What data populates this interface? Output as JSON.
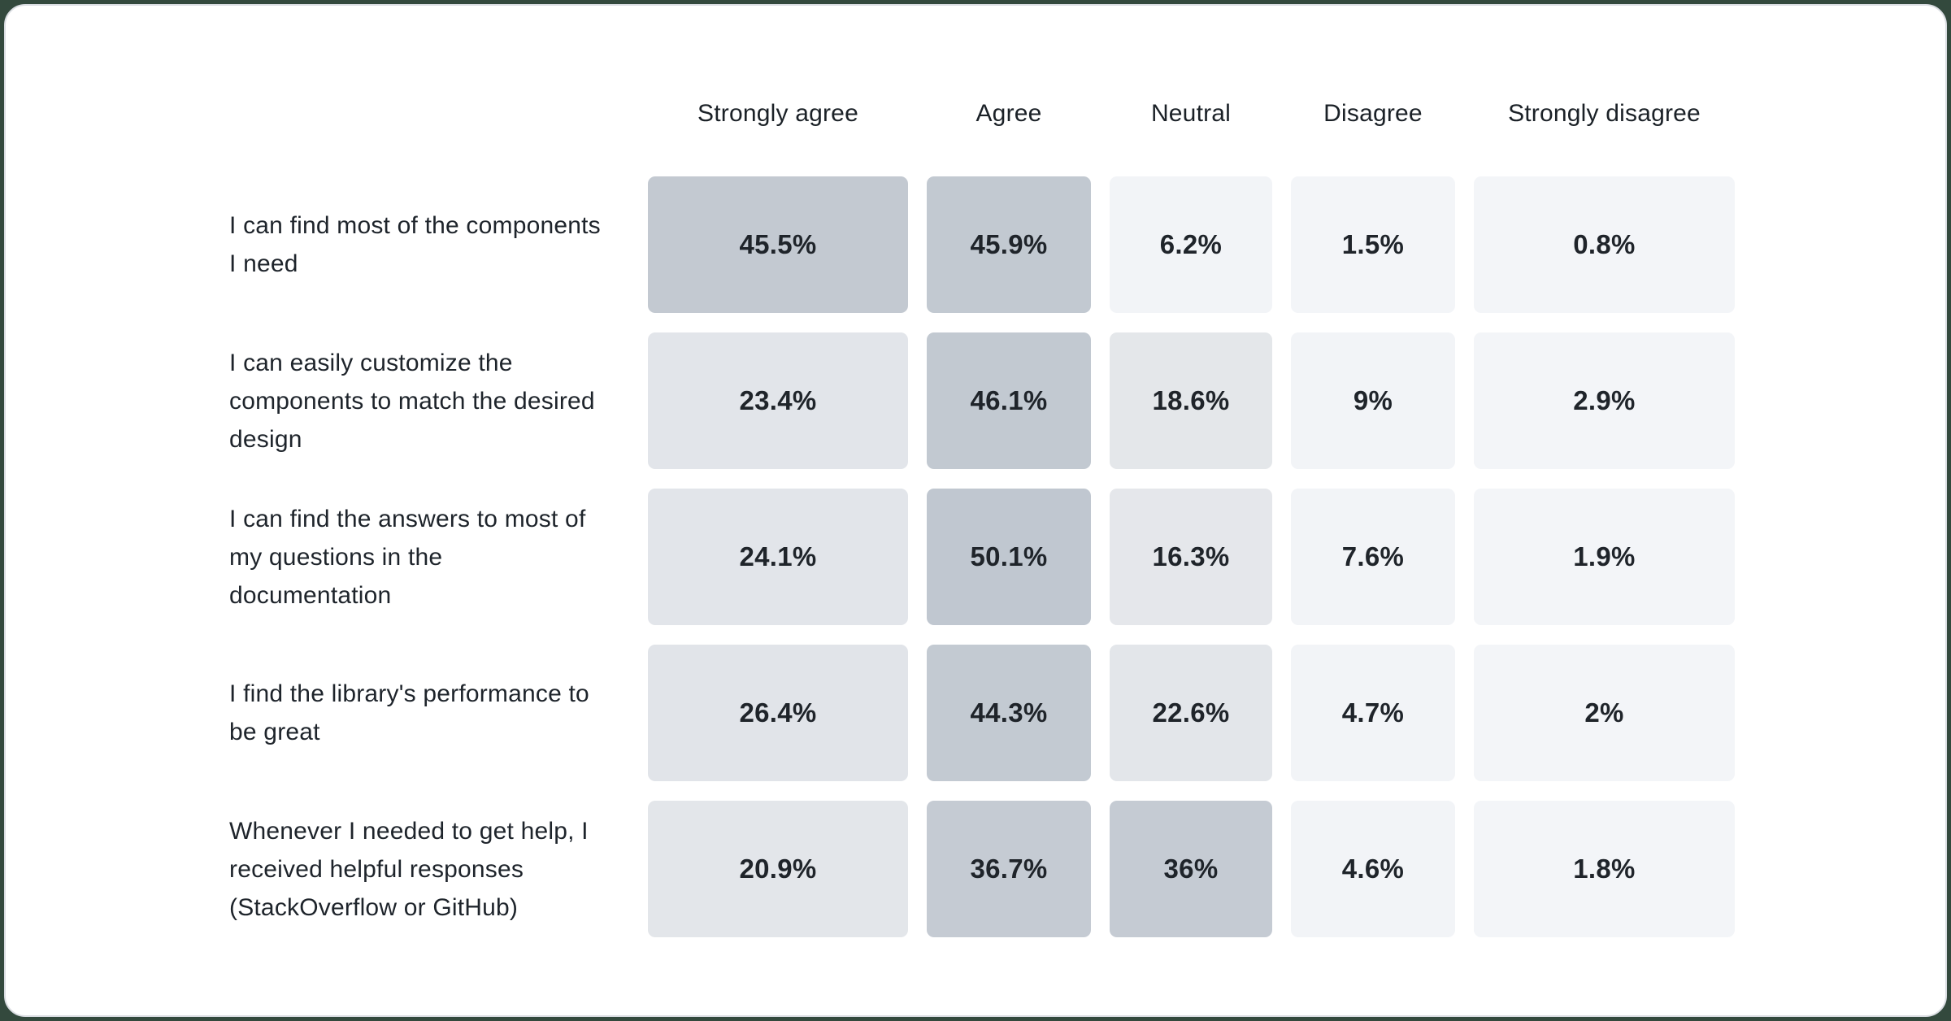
{
  "page": {
    "background_color": "#33493d",
    "card_background": "#ffffff",
    "card_border_color": "#dadde2"
  },
  "heatmap": {
    "header_text_color": "#1b2127",
    "label_text_color": "#1e242b",
    "value_text_color": "#1f242a",
    "headers": [
      "Strongly agree",
      "Agree",
      "Neutral",
      "Disagree",
      "Strongly disagree"
    ],
    "rows": [
      {
        "label": "I can find most of the components I need",
        "values": [
          "45.5%",
          "45.9%",
          "6.2%",
          "1.5%",
          "0.8%"
        ],
        "colors": [
          "#c3c9d1",
          "#c2c9d1",
          "#f2f4f7",
          "#f3f5f8",
          "#f3f5f8"
        ]
      },
      {
        "label": "I can easily customize the components to match the desired design",
        "values": [
          "23.4%",
          "46.1%",
          "18.6%",
          "9%",
          "2.9%"
        ],
        "colors": [
          "#e2e5ea",
          "#c2c9d1",
          "#e4e7ea",
          "#f2f4f7",
          "#f3f5f8"
        ]
      },
      {
        "label": "I can find the answers to most of my questions in the documentation",
        "values": [
          "24.1%",
          "50.1%",
          "16.3%",
          "7.6%",
          "1.9%"
        ],
        "colors": [
          "#e2e5ea",
          "#c0c7d0",
          "#e5e7eb",
          "#f2f4f7",
          "#f3f5f8"
        ]
      },
      {
        "label": "I find the library's performance to be great",
        "values": [
          "26.4%",
          "44.3%",
          "22.6%",
          "4.7%",
          "2%"
        ],
        "colors": [
          "#e1e4e9",
          "#c3cad2",
          "#e3e6ea",
          "#f2f4f7",
          "#f3f5f8"
        ]
      },
      {
        "label": "Whenever I needed to get help, I received helpful responses (StackOverflow or GitHub)",
        "values": [
          "20.9%",
          "36.7%",
          "36%",
          "4.6%",
          "1.8%"
        ],
        "colors": [
          "#e3e6ea",
          "#c5cbd3",
          "#c5cbd3",
          "#f2f4f7",
          "#f3f5f8"
        ]
      }
    ]
  },
  "chart_data": {
    "type": "heatmap",
    "title": "",
    "columns": [
      "Strongly agree",
      "Agree",
      "Neutral",
      "Disagree",
      "Strongly disagree"
    ],
    "row_labels": [
      "I can find most of the components I need",
      "I can easily customize the components to match the desired design",
      "I can find the answers to most of my questions in the documentation",
      "I find the library's performance to be great",
      "Whenever I needed to get help, I received helpful responses (StackOverflow or GitHub)"
    ],
    "values_percent": [
      [
        45.5,
        45.9,
        6.2,
        1.5,
        0.8
      ],
      [
        23.4,
        46.1,
        18.6,
        9,
        2.9
      ],
      [
        24.1,
        50.1,
        16.3,
        7.6,
        1.9
      ],
      [
        26.4,
        44.3,
        22.6,
        4.7,
        2
      ],
      [
        20.9,
        36.7,
        36,
        4.6,
        1.8
      ]
    ],
    "legend": "none",
    "grid": "off",
    "color_scale": {
      "low": "#f3f5f8",
      "mid": "#e3e6ea",
      "high": "#c2c9d1"
    }
  }
}
